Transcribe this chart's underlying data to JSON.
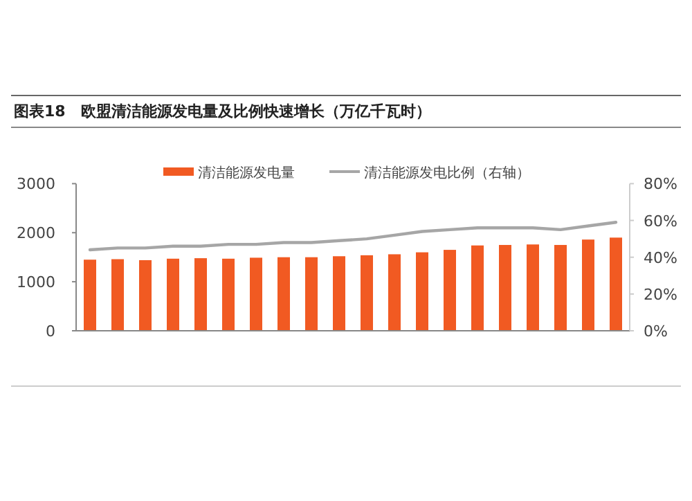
{
  "chart_data": {
    "type": "bar",
    "title": "图表18　欧盟清洁能源发电量及比例快速增长（万亿千瓦时）",
    "categories": [
      null,
      null,
      null,
      null,
      null,
      null,
      null,
      null,
      null,
      null,
      null,
      null,
      null,
      null,
      null,
      null,
      null,
      null,
      null,
      null
    ],
    "series": [
      {
        "name": "清洁能源发电量",
        "color": "#f15a22",
        "values": [
          1450,
          1460,
          1440,
          1470,
          1480,
          1470,
          1490,
          1500,
          1500,
          1520,
          1540,
          1560,
          1600,
          1650,
          1740,
          1750,
          1760,
          1750,
          1860,
          1900
        ]
      },
      {
        "name": "清洁能源发电比例（右轴）",
        "type": "line",
        "axis": "y2",
        "color": "#a6a6a6",
        "values": [
          44,
          45,
          45,
          46,
          46,
          47,
          47,
          48,
          48,
          49,
          50,
          52,
          54,
          55,
          56,
          56,
          56,
          55,
          57,
          59
        ]
      }
    ],
    "ylim": [
      0,
      3000
    ],
    "yticks": [
      0,
      1000,
      2000,
      3000
    ],
    "y2lim": [
      0,
      80
    ],
    "y2ticks": [
      {
        "value": 0,
        "label": "0%"
      },
      {
        "value": 20,
        "label": "20%"
      },
      {
        "value": 40,
        "label": "40%"
      },
      {
        "value": 60,
        "label": "60%"
      },
      {
        "value": 80,
        "label": "80%"
      }
    ],
    "legend": "top",
    "marker": "none",
    "line_style": "solid"
  }
}
